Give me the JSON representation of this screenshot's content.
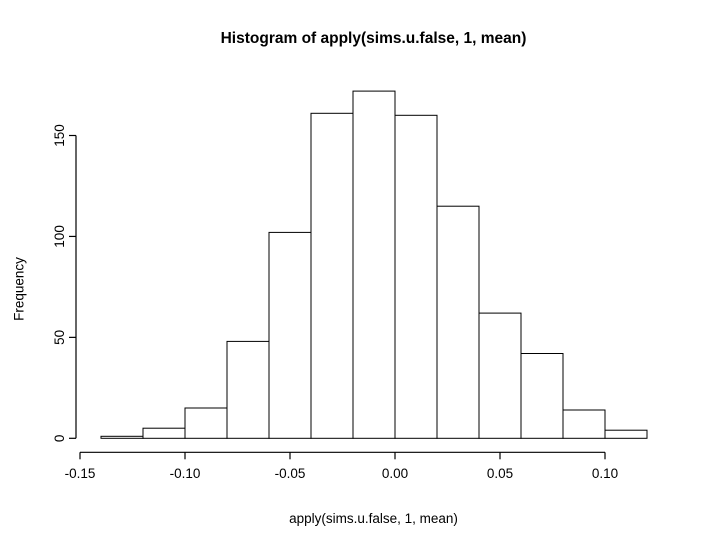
{
  "page": {
    "background": "#ffffff"
  },
  "chart_data": {
    "type": "bar",
    "subtype": "histogram",
    "title": "Histogram of apply(sims.u.false, 1, mean)",
    "xlabel": "apply(sims.u.false, 1, mean)",
    "ylabel": "Frequency",
    "breaks": [
      -0.14,
      -0.12,
      -0.1,
      -0.08,
      -0.06,
      -0.04,
      -0.02,
      0.0,
      0.02,
      0.04,
      0.06,
      0.08,
      0.1,
      0.12
    ],
    "counts": [
      1,
      5,
      15,
      48,
      102,
      161,
      172,
      160,
      115,
      62,
      42,
      14,
      4
    ],
    "x_ticks": [
      -0.15,
      -0.1,
      -0.05,
      0.0,
      0.05,
      0.1
    ],
    "x_tick_labels": [
      "-0.15",
      "-0.10",
      "-0.05",
      "0.00",
      "0.05",
      "0.10"
    ],
    "y_ticks": [
      0,
      50,
      100,
      150
    ],
    "y_tick_labels": [
      "0",
      "50",
      "100",
      "150"
    ],
    "xlim": [
      -0.15,
      0.12
    ],
    "ylim": [
      0,
      172
    ],
    "grid": false,
    "legend": null,
    "bar_fill": "#ffffff",
    "bar_stroke": "#000000",
    "axis_color": "#000000",
    "text_color": "#000000"
  }
}
